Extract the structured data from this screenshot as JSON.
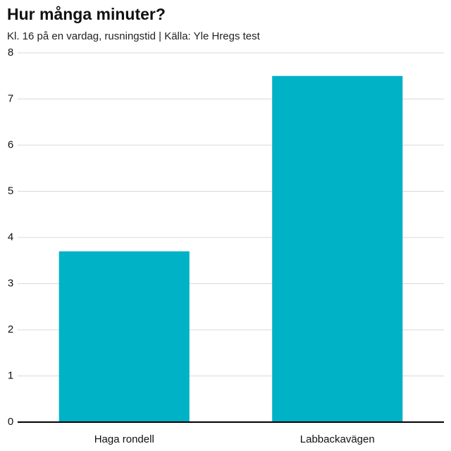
{
  "chart_data": {
    "type": "bar",
    "title": "Hur många minuter?",
    "subtitle": "Kl. 16 på en vardag, rusningstid | Källa: Yle Hregs test",
    "categories": [
      "Haga rondell",
      "Labbackavägen"
    ],
    "values": [
      3.7,
      7.5
    ],
    "color": "#00b2c6",
    "ylim": [
      0,
      8
    ],
    "yticks": [
      0,
      1,
      2,
      3,
      4,
      5,
      6,
      7,
      8
    ],
    "grid": true
  }
}
